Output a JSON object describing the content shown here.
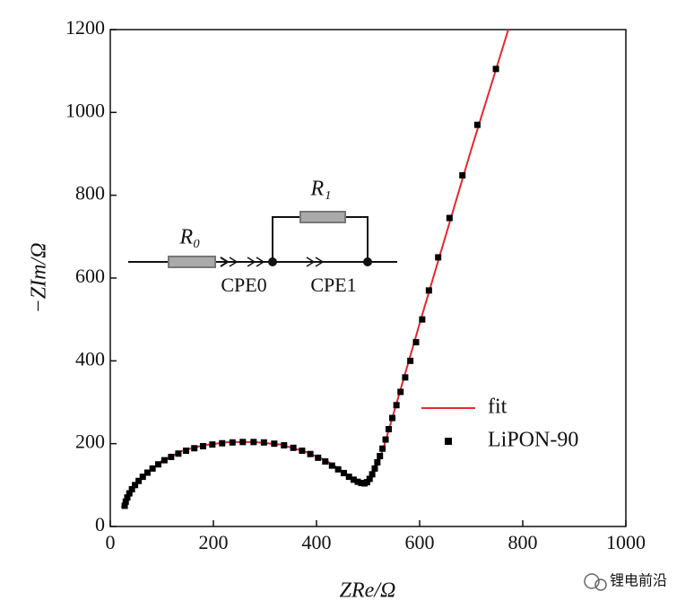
{
  "chart_data": {
    "type": "scatter",
    "x_label": "ZRe/Ω",
    "y_label": "−ZIm/Ω",
    "xlim": [
      0,
      1000
    ],
    "xticks": [
      0,
      200,
      400,
      600,
      800,
      1000
    ],
    "ylim": [
      0,
      1200
    ],
    "yticks": [
      0,
      200,
      400,
      600,
      800,
      1000,
      1200
    ],
    "series": [
      {
        "name": "fit",
        "type": "line",
        "color": "#e8262e",
        "x": [
          22,
          30,
          45,
          70,
          100,
          140,
          180,
          230,
          280,
          330,
          380,
          420,
          450,
          470,
          485,
          495,
          505,
          515,
          530,
          550,
          600,
          650,
          700,
          772
        ],
        "values": [
          45,
          65,
          95,
          128,
          158,
          183,
          196,
          204,
          204,
          198,
          180,
          158,
          134,
          117,
          106,
          104,
          115,
          140,
          190,
          275,
          490,
          700,
          910,
          1200
        ]
      },
      {
        "name": "LiPON-90",
        "type": "scatter",
        "color": "#000000",
        "x": [
          28,
          30,
          33,
          37,
          42,
          48,
          55,
          63,
          72,
          82,
          93,
          105,
          118,
          132,
          147,
          163,
          180,
          198,
          217,
          237,
          257,
          278,
          298,
          318,
          337,
          355,
          372,
          388,
          403,
          417,
          430,
          442,
          453,
          463,
          472,
          480,
          487,
          493,
          498,
          503,
          508,
          513,
          518,
          523,
          528,
          534,
          540,
          547,
          555,
          563,
          572,
          582,
          593,
          605,
          618,
          636,
          658,
          683,
          712,
          748
        ],
        "values": [
          50,
          60,
          70,
          80,
          90,
          100,
          110,
          120,
          130,
          140,
          150,
          160,
          168,
          176,
          183,
          189,
          194,
          198,
          201,
          203,
          204,
          204,
          203,
          200,
          196,
          190,
          183,
          175,
          166,
          157,
          147,
          138,
          129,
          120,
          113,
          108,
          105,
          104,
          107,
          115,
          126,
          140,
          155,
          170,
          188,
          210,
          235,
          262,
          293,
          325,
          360,
          400,
          445,
          500,
          570,
          650,
          745,
          848,
          970,
          1105
        ]
      }
    ],
    "inset": {
      "labels": [
        "R₀",
        "R₁",
        "CPE0",
        "CPE1"
      ]
    }
  },
  "watermark": "锂电前沿"
}
